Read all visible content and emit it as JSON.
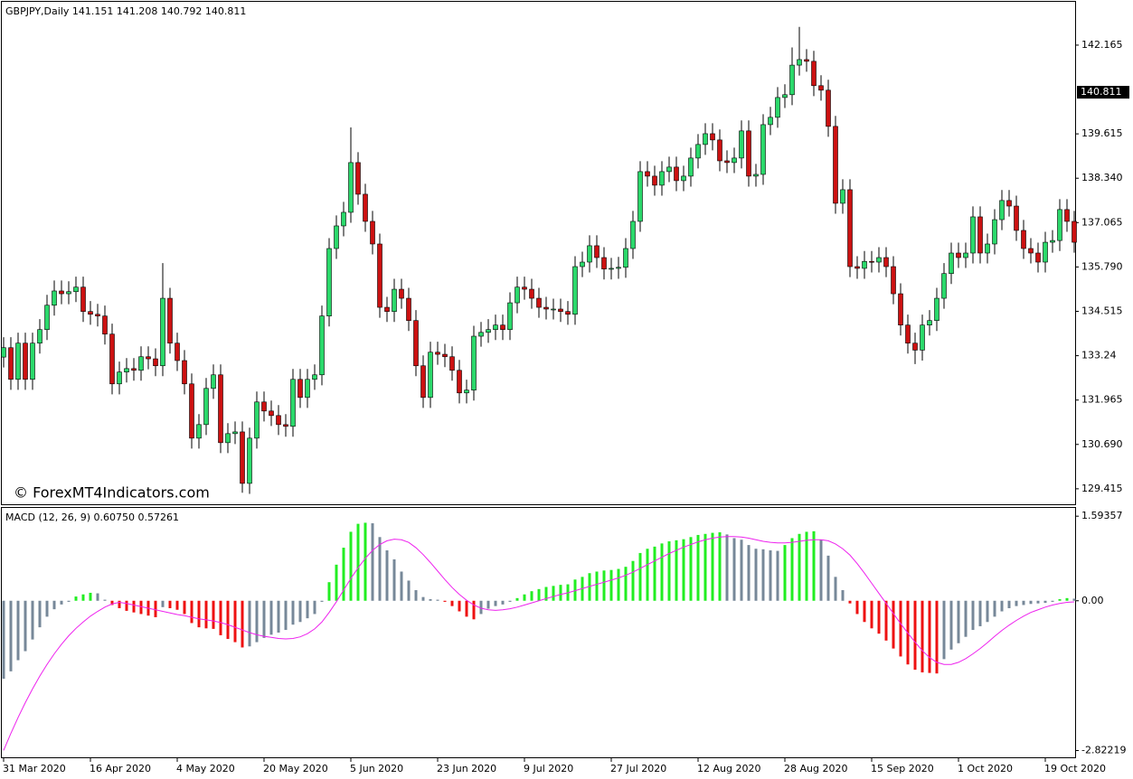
{
  "chart_data": [
    {
      "type": "candlestick",
      "title": "GBPJPY,Daily  141.151 141.208 140.792 140.811",
      "watermark": "© ForexMT4Indicators.com",
      "categories": [
        "31 Mar 2020",
        null,
        null,
        null,
        null,
        null,
        null,
        null,
        null,
        null,
        null,
        null,
        "16 Apr 2020",
        null,
        null,
        null,
        null,
        null,
        null,
        null,
        null,
        null,
        null,
        null,
        "4 May 2020",
        null,
        null,
        null,
        null,
        null,
        null,
        null,
        null,
        null,
        null,
        null,
        "20 May 2020",
        null,
        null,
        null,
        null,
        null,
        null,
        null,
        null,
        null,
        null,
        null,
        "5 Jun 2020",
        null,
        null,
        null,
        null,
        null,
        null,
        null,
        null,
        null,
        null,
        null,
        "23 Jun 2020",
        null,
        null,
        null,
        null,
        null,
        null,
        null,
        null,
        null,
        null,
        null,
        "9 Jul 2020",
        null,
        null,
        null,
        null,
        null,
        null,
        null,
        null,
        null,
        null,
        null,
        "27 Jul 2020",
        null,
        null,
        null,
        null,
        null,
        null,
        null,
        null,
        null,
        null,
        null,
        "12 Aug 2020",
        null,
        null,
        null,
        null,
        null,
        null,
        null,
        null,
        null,
        null,
        null,
        "28 Aug 2020",
        null,
        null,
        null,
        null,
        null,
        null,
        null,
        null,
        null,
        null,
        null,
        "15 Sep 2020",
        null,
        null,
        null,
        null,
        null,
        null,
        null,
        null,
        null,
        null,
        null,
        "1 Oct 2020",
        null,
        null,
        null,
        null,
        null,
        null,
        null,
        null,
        null,
        null,
        null,
        "19 Oct 2020",
        null,
        null,
        null,
        null
      ],
      "open": [
        133.2,
        133.47,
        132.56,
        133.6,
        132.56,
        133.6,
        133.99,
        134.69,
        135.1,
        135.02,
        135.08,
        135.21,
        134.51,
        134.43,
        134.38,
        133.86,
        132.43,
        132.77,
        132.87,
        132.82,
        133.21,
        133.15,
        132.95,
        134.89,
        133.6,
        133.1,
        132.43,
        130.87,
        131.26,
        132.3,
        132.69,
        130.74,
        131.0,
        131.05,
        129.57,
        130.87,
        131.91,
        131.65,
        131.52,
        131.26,
        131.21,
        132.56,
        132.04,
        132.56,
        132.69,
        134.38,
        136.32,
        136.97,
        137.36,
        138.79,
        137.88,
        137.1,
        136.45,
        134.63,
        134.51,
        135.15,
        134.89,
        134.25,
        132.95,
        132.04,
        133.34,
        133.28,
        133.21,
        132.82,
        132.17,
        132.25,
        133.8,
        133.91,
        133.99,
        134.12,
        133.99,
        134.76,
        135.21,
        135.15,
        134.89,
        134.63,
        134.58,
        134.58,
        134.51,
        134.43,
        135.8,
        135.93,
        136.4,
        136.06,
        135.73,
        135.75,
        135.78,
        136.32,
        137.1,
        138.53,
        138.4,
        138.14,
        138.53,
        138.66,
        138.27,
        138.4,
        138.92,
        139.31,
        139.62,
        139.44,
        138.84,
        138.79,
        138.92,
        139.7,
        138.4,
        138.45,
        139.88,
        140.09,
        140.66,
        140.74,
        141.59,
        141.75,
        141.7,
        141.0,
        140.87,
        139.83,
        137.62,
        138.01,
        135.8,
        135.75,
        135.95,
        135.93,
        136.06,
        135.8,
        135.02,
        134.12,
        133.6,
        133.4,
        134.12,
        134.25,
        134.89,
        135.6,
        136.19,
        136.06,
        136.19,
        137.23,
        136.19,
        136.45,
        137.15,
        137.7,
        137.54,
        136.84,
        136.32,
        136.19,
        135.93,
        136.5,
        136.55,
        137.44,
        137.1
      ],
      "high": [
        133.77,
        133.77,
        133.9,
        133.9,
        133.9,
        134.29,
        134.99,
        135.4,
        135.4,
        135.38,
        135.51,
        135.51,
        134.81,
        134.73,
        134.68,
        134.16,
        133.07,
        133.17,
        133.17,
        133.51,
        133.51,
        133.45,
        135.9,
        135.19,
        133.9,
        133.4,
        132.73,
        131.56,
        132.6,
        132.99,
        132.99,
        131.3,
        131.35,
        131.35,
        131.17,
        132.21,
        132.21,
        131.95,
        131.82,
        131.56,
        132.86,
        132.86,
        132.86,
        132.99,
        134.68,
        136.62,
        137.27,
        137.66,
        139.8,
        139.09,
        138.18,
        137.4,
        136.75,
        134.93,
        135.45,
        135.45,
        135.19,
        134.55,
        133.25,
        133.64,
        133.64,
        133.58,
        133.51,
        133.12,
        132.55,
        134.1,
        134.21,
        134.29,
        134.42,
        134.42,
        135.06,
        135.51,
        135.51,
        135.45,
        135.19,
        134.93,
        134.88,
        134.88,
        134.81,
        136.1,
        136.23,
        136.7,
        136.7,
        136.36,
        136.05,
        136.08,
        136.62,
        137.4,
        138.83,
        138.83,
        138.7,
        138.83,
        138.96,
        138.96,
        138.7,
        139.22,
        139.61,
        139.92,
        139.92,
        139.74,
        139.14,
        139.22,
        140.0,
        140.0,
        138.75,
        140.18,
        140.39,
        140.96,
        141.04,
        142.1,
        142.69,
        142.05,
        142.0,
        141.3,
        141.17,
        140.13,
        138.31,
        138.31,
        136.1,
        136.25,
        136.25,
        136.36,
        136.36,
        136.1,
        135.32,
        134.42,
        133.9,
        134.42,
        134.55,
        135.19,
        135.9,
        136.49,
        136.49,
        136.49,
        137.53,
        137.53,
        136.75,
        137.45,
        138.0,
        138.0,
        137.84,
        137.14,
        136.62,
        136.49,
        136.8,
        136.85,
        137.74,
        137.74,
        137.4
      ],
      "low": [
        132.9,
        132.26,
        132.26,
        132.26,
        132.26,
        133.3,
        133.69,
        134.39,
        134.72,
        134.72,
        134.78,
        134.21,
        134.13,
        134.08,
        133.56,
        132.13,
        132.13,
        132.47,
        132.52,
        132.52,
        132.85,
        132.65,
        132.65,
        133.3,
        132.8,
        132.13,
        130.57,
        130.57,
        130.96,
        132.0,
        130.44,
        130.44,
        130.7,
        129.3,
        129.27,
        130.57,
        131.35,
        131.22,
        130.96,
        130.91,
        130.91,
        131.74,
        131.74,
        132.26,
        132.39,
        134.08,
        136.02,
        136.67,
        137.06,
        137.58,
        136.8,
        136.15,
        134.33,
        134.21,
        134.21,
        134.59,
        133.95,
        132.65,
        131.74,
        131.74,
        132.98,
        132.91,
        132.52,
        131.87,
        131.87,
        131.95,
        133.5,
        133.61,
        133.69,
        133.69,
        133.69,
        134.46,
        134.85,
        134.59,
        134.33,
        134.28,
        134.28,
        134.21,
        134.13,
        134.13,
        135.5,
        135.63,
        135.76,
        135.43,
        135.43,
        135.45,
        135.48,
        136.02,
        136.8,
        138.1,
        137.84,
        137.84,
        138.23,
        137.97,
        137.97,
        138.1,
        138.62,
        139.01,
        139.14,
        138.54,
        138.49,
        138.49,
        138.62,
        138.1,
        138.1,
        138.15,
        139.58,
        139.79,
        140.36,
        140.44,
        141.29,
        141.4,
        140.7,
        140.57,
        139.53,
        137.32,
        137.32,
        135.5,
        135.45,
        135.45,
        135.63,
        135.63,
        135.5,
        134.72,
        133.82,
        133.3,
        133.0,
        133.1,
        133.82,
        133.95,
        134.59,
        135.3,
        135.76,
        135.76,
        135.89,
        135.89,
        135.89,
        136.15,
        136.85,
        137.24,
        136.54,
        136.02,
        135.89,
        135.63,
        135.63,
        136.2,
        136.25,
        136.8,
        136.2
      ],
      "close": [
        133.47,
        132.56,
        133.6,
        132.56,
        133.6,
        133.99,
        134.69,
        135.1,
        135.02,
        135.08,
        135.21,
        134.51,
        134.43,
        134.38,
        133.86,
        132.43,
        132.77,
        132.87,
        132.82,
        133.21,
        133.15,
        132.95,
        134.89,
        133.6,
        133.1,
        132.43,
        130.87,
        131.26,
        132.3,
        132.69,
        130.74,
        131.0,
        131.05,
        129.57,
        130.87,
        131.91,
        131.65,
        131.52,
        131.26,
        131.21,
        132.56,
        132.04,
        132.56,
        132.69,
        134.38,
        136.32,
        136.97,
        137.36,
        138.79,
        137.88,
        137.1,
        136.45,
        134.63,
        134.51,
        135.15,
        134.89,
        134.25,
        132.95,
        132.04,
        133.34,
        133.28,
        133.21,
        132.82,
        132.17,
        132.25,
        133.8,
        133.91,
        133.99,
        134.12,
        133.99,
        134.76,
        135.21,
        135.15,
        134.89,
        134.63,
        134.58,
        134.58,
        134.51,
        134.43,
        135.8,
        135.93,
        136.4,
        136.06,
        135.73,
        135.75,
        135.78,
        136.32,
        137.1,
        138.53,
        138.4,
        138.14,
        138.53,
        138.66,
        138.27,
        138.4,
        138.92,
        139.31,
        139.62,
        139.44,
        138.84,
        138.79,
        138.92,
        139.7,
        138.4,
        138.45,
        139.88,
        140.09,
        140.66,
        140.74,
        141.59,
        141.75,
        141.7,
        141.0,
        140.87,
        139.83,
        137.62,
        138.01,
        135.8,
        135.75,
        135.95,
        135.93,
        136.06,
        135.8,
        135.02,
        134.12,
        133.6,
        133.4,
        134.12,
        134.25,
        134.89,
        135.6,
        136.19,
        136.06,
        136.19,
        137.23,
        136.19,
        136.45,
        137.15,
        137.7,
        137.54,
        136.84,
        136.32,
        136.19,
        135.93,
        136.5,
        136.55,
        137.44,
        137.1,
        136.5
      ],
      "up_color": "#2bd96b",
      "down_color": "#cc1111",
      "current_price": 140.811,
      "ylim": [
        128.97,
        143.41
      ],
      "yticks": [
        142.165,
        139.615,
        {
          "value": 138.34,
          "label": "138.340"
        },
        137.065,
        {
          "value": 135.79,
          "label": "135.790"
        },
        134.515,
        133.24,
        131.965,
        {
          "value": 130.69,
          "label": "130.690"
        },
        129.415
      ]
    },
    {
      "type": "macd",
      "title": "MACD (12, 26, 9)  0.60750 0.57261",
      "values": [
        -1.47,
        -1.33,
        -1.12,
        -0.95,
        -0.73,
        -0.5,
        -0.3,
        -0.16,
        -0.07,
        -0.02,
        0.08,
        0.12,
        0.15,
        0.14,
        0.02,
        -0.08,
        -0.14,
        -0.19,
        -0.22,
        -0.25,
        -0.28,
        -0.31,
        -0.12,
        -0.14,
        -0.17,
        -0.25,
        -0.42,
        -0.5,
        -0.52,
        -0.53,
        -0.65,
        -0.72,
        -0.78,
        -0.88,
        -0.86,
        -0.78,
        -0.7,
        -0.64,
        -0.6,
        -0.55,
        -0.45,
        -0.4,
        -0.33,
        -0.25,
        -0.02,
        0.35,
        0.68,
        1.0,
        1.3,
        1.45,
        1.47,
        1.46,
        1.2,
        0.95,
        0.78,
        0.55,
        0.38,
        0.2,
        0.07,
        0.03,
        0.02,
        -0.02,
        -0.1,
        -0.2,
        -0.3,
        -0.35,
        -0.25,
        -0.15,
        -0.1,
        -0.07,
        -0.02,
        0.05,
        0.12,
        0.18,
        0.22,
        0.26,
        0.28,
        0.3,
        0.31,
        0.4,
        0.45,
        0.52,
        0.55,
        0.57,
        0.58,
        0.6,
        0.64,
        0.75,
        0.9,
        0.98,
        1.02,
        1.08,
        1.12,
        1.14,
        1.16,
        1.2,
        1.24,
        1.26,
        1.28,
        1.29,
        1.25,
        1.18,
        1.15,
        1.05,
        0.98,
        0.97,
        0.95,
        0.94,
        1.05,
        1.18,
        1.26,
        1.3,
        1.31,
        1.15,
        0.85,
        0.45,
        0.2,
        -0.05,
        -0.25,
        -0.4,
        -0.52,
        -0.62,
        -0.75,
        -0.9,
        -1.05,
        -1.2,
        -1.3,
        -1.35,
        -1.36,
        -1.37,
        -1.1,
        -0.92,
        -0.8,
        -0.68,
        -0.55,
        -0.48,
        -0.4,
        -0.3,
        -0.2,
        -0.14,
        -0.1,
        -0.08,
        -0.06,
        -0.05,
        -0.04,
        -0.02,
        0.03,
        0.05,
        0.04
      ],
      "signal": [
        -2.82,
        -2.5,
        -2.2,
        -1.92,
        -1.66,
        -1.42,
        -1.2,
        -1.0,
        -0.82,
        -0.66,
        -0.52,
        -0.4,
        -0.29,
        -0.2,
        -0.12,
        -0.06,
        -0.03,
        -0.05,
        -0.08,
        -0.11,
        -0.14,
        -0.17,
        -0.2,
        -0.23,
        -0.26,
        -0.28,
        -0.31,
        -0.34,
        -0.36,
        -0.38,
        -0.41,
        -0.45,
        -0.5,
        -0.55,
        -0.6,
        -0.64,
        -0.67,
        -0.69,
        -0.71,
        -0.72,
        -0.71,
        -0.68,
        -0.62,
        -0.53,
        -0.4,
        -0.22,
        -0.02,
        0.2,
        0.42,
        0.62,
        0.8,
        0.95,
        1.06,
        1.13,
        1.16,
        1.15,
        1.1,
        1.0,
        0.87,
        0.72,
        0.56,
        0.4,
        0.25,
        0.12,
        0.01,
        -0.08,
        -0.14,
        -0.17,
        -0.18,
        -0.17,
        -0.15,
        -0.12,
        -0.08,
        -0.04,
        0.0,
        0.04,
        0.08,
        0.12,
        0.15,
        0.19,
        0.23,
        0.27,
        0.31,
        0.35,
        0.39,
        0.43,
        0.48,
        0.54,
        0.61,
        0.68,
        0.75,
        0.82,
        0.89,
        0.95,
        1.01,
        1.06,
        1.11,
        1.15,
        1.18,
        1.2,
        1.21,
        1.21,
        1.2,
        1.18,
        1.15,
        1.12,
        1.1,
        1.09,
        1.09,
        1.1,
        1.12,
        1.14,
        1.15,
        1.15,
        1.13,
        1.07,
        0.98,
        0.86,
        0.7,
        0.52,
        0.33,
        0.14,
        -0.05,
        -0.24,
        -0.43,
        -0.61,
        -0.78,
        -0.94,
        -1.07,
        -1.16,
        -1.2,
        -1.2,
        -1.16,
        -1.09,
        -1.0,
        -0.9,
        -0.79,
        -0.67,
        -0.56,
        -0.46,
        -0.37,
        -0.29,
        -0.22,
        -0.17,
        -0.12,
        -0.08,
        -0.05,
        -0.03,
        -0.02
      ],
      "up_color": "#22ee22",
      "down_color": "#ee1111",
      "neutral_color": "#778899",
      "signal_color": "#ee22ee",
      "ylim": [
        -2.95,
        1.75
      ],
      "yticks": [
        1.59357,
        {
          "value": 0,
          "label": "0.00"
        },
        -2.82219
      ]
    }
  ]
}
